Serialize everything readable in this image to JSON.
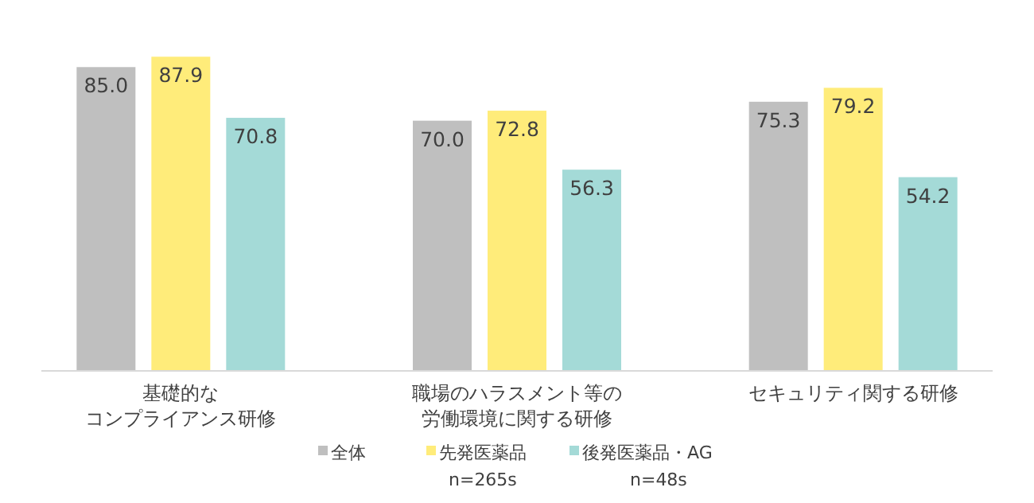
{
  "chart_data": {
    "type": "bar",
    "categories": [
      "基礎的なコンプライアンス研修",
      "職場のハラスメント等の労働環境に関する研修",
      "セキュリティ関する研修"
    ],
    "series": [
      {
        "name": "全体",
        "color": "#bfbfbf",
        "values": [
          85.0,
          70.0,
          75.3
        ],
        "value_labels": [
          "85.0",
          "70.0",
          "75.3"
        ]
      },
      {
        "name": "先発医薬品\nn=265s",
        "color": "#ffec7a",
        "values": [
          87.9,
          72.8,
          79.2
        ],
        "value_labels": [
          "87.9",
          "72.8",
          "79.2"
        ]
      },
      {
        "name": "後発医薬品・AG\nn=48s",
        "color": "#a4dad7",
        "values": [
          70.8,
          56.3,
          54.2
        ],
        "value_labels": [
          "70.8",
          "56.3",
          "54.2"
        ]
      }
    ],
    "legend": "bottom",
    "grid": false
  }
}
